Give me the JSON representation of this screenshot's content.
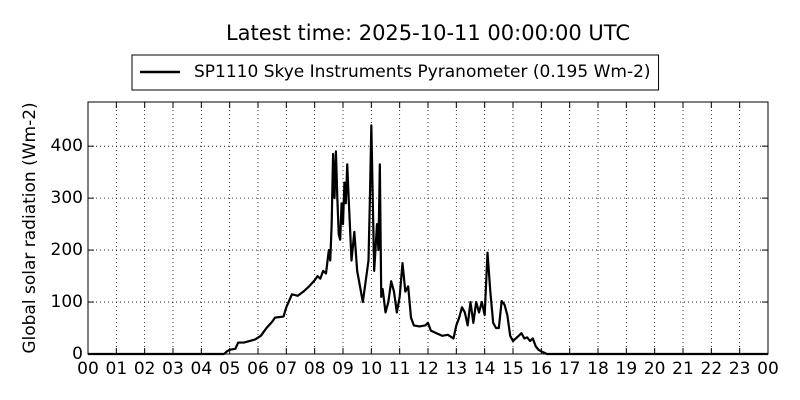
{
  "chart_data": {
    "type": "line",
    "title": "Latest time: 2025-10-11 00:00:00 UTC",
    "y_label": "Global solar radiation (Wm-2)",
    "x": [
      0,
      4.8,
      4.9,
      5.0,
      5.2,
      5.3,
      5.5,
      5.7,
      5.9,
      6.1,
      6.3,
      6.5,
      6.6,
      6.9,
      7.0,
      7.2,
      7.4,
      7.6,
      7.8,
      8.0,
      8.1,
      8.2,
      8.3,
      8.4,
      8.5,
      8.55,
      8.6,
      8.65,
      8.7,
      8.75,
      8.8,
      8.85,
      8.9,
      8.95,
      9.0,
      9.05,
      9.1,
      9.15,
      9.2,
      9.3,
      9.4,
      9.5,
      9.6,
      9.7,
      9.8,
      9.9,
      9.95,
      10.0,
      10.05,
      10.1,
      10.2,
      10.25,
      10.3,
      10.35,
      10.4,
      10.5,
      10.6,
      10.7,
      10.8,
      10.9,
      11.0,
      11.1,
      11.2,
      11.3,
      11.4,
      11.5,
      11.7,
      11.9,
      12.0,
      12.1,
      12.3,
      12.5,
      12.7,
      12.9,
      13.0,
      13.1,
      13.2,
      13.3,
      13.4,
      13.5,
      13.6,
      13.7,
      13.8,
      13.9,
      14.0,
      14.1,
      14.2,
      14.3,
      14.4,
      14.5,
      14.6,
      14.7,
      14.8,
      14.9,
      15.0,
      15.1,
      15.2,
      15.3,
      15.4,
      15.5,
      15.6,
      15.7,
      15.8,
      15.9,
      16.0,
      16.2,
      24
    ],
    "series": [
      {
        "name": "SP1110 Skye Instruments Pyranometer (0.195 Wm-2)",
        "color": "#000000",
        "values": [
          0,
          0,
          5,
          8,
          10,
          22,
          22,
          25,
          28,
          35,
          50,
          62,
          70,
          72,
          90,
          115,
          112,
          120,
          130,
          142,
          150,
          145,
          160,
          155,
          200,
          180,
          250,
          385,
          300,
          390,
          300,
          230,
          220,
          290,
          250,
          330,
          290,
          365,
          300,
          180,
          235,
          160,
          130,
          100,
          140,
          180,
          300,
          440,
          300,
          160,
          250,
          200,
          365,
          110,
          125,
          80,
          100,
          140,
          120,
          80,
          110,
          175,
          120,
          130,
          70,
          55,
          53,
          55,
          60,
          45,
          40,
          35,
          37,
          30,
          55,
          70,
          90,
          80,
          55,
          100,
          60,
          100,
          80,
          100,
          75,
          195,
          120,
          60,
          50,
          50,
          102,
          95,
          75,
          35,
          25,
          30,
          35,
          40,
          30,
          32,
          25,
          30,
          15,
          8,
          5,
          0,
          0
        ]
      }
    ],
    "xlim": [
      0,
      24
    ],
    "xticks": [
      {
        "value": 0,
        "label": "00"
      },
      {
        "value": 1,
        "label": "01"
      },
      {
        "value": 2,
        "label": "02"
      },
      {
        "value": 3,
        "label": "03"
      },
      {
        "value": 4,
        "label": "04"
      },
      {
        "value": 5,
        "label": "05"
      },
      {
        "value": 6,
        "label": "06"
      },
      {
        "value": 7,
        "label": "07"
      },
      {
        "value": 8,
        "label": "08"
      },
      {
        "value": 9,
        "label": "09"
      },
      10,
      11,
      12,
      13,
      14,
      15,
      16,
      17,
      18,
      19,
      20,
      21,
      22,
      23,
      {
        "value": 24,
        "label": "00"
      }
    ],
    "ylim": [
      0,
      485
    ],
    "yticks": [
      0,
      100,
      200,
      300,
      400
    ],
    "grid": true,
    "legend": "top"
  }
}
